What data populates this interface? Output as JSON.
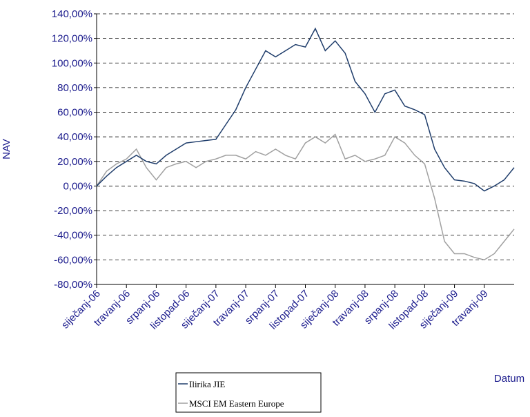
{
  "chart_data": {
    "type": "line",
    "y_label": "NAV",
    "x_label": "Datum",
    "categories": [
      "siječanj-06",
      null,
      null,
      "travanj-06",
      null,
      null,
      "srpanj-06",
      null,
      null,
      "listopad-06",
      null,
      null,
      "siječanj-07",
      null,
      null,
      "travanj-07",
      null,
      null,
      "srpanj-07",
      null,
      null,
      "listopad-07",
      null,
      null,
      "siječanj-08",
      null,
      null,
      "travanj-08",
      null,
      null,
      "srpanj-08",
      null,
      null,
      "listopad-08",
      null,
      null,
      "siječanj-09",
      null,
      null,
      "travanj-09",
      null,
      null,
      null
    ],
    "series": [
      {
        "name": "Ilirika JIE",
        "color": "#1f3d6b",
        "values": [
          0,
          8,
          15,
          20,
          25,
          20,
          18,
          25,
          30,
          35,
          36,
          37,
          38,
          50,
          62,
          80,
          95,
          110,
          105,
          110,
          115,
          113,
          128,
          110,
          118,
          108,
          85,
          75,
          60,
          75,
          78,
          65,
          62,
          58,
          30,
          15,
          5,
          4,
          2,
          -4,
          0,
          5,
          15
        ]
      },
      {
        "name": "MSCI EM Eastern Europe",
        "color": "#a0a0a0",
        "values": [
          0,
          12,
          18,
          22,
          30,
          15,
          5,
          15,
          18,
          20,
          15,
          20,
          22,
          25,
          25,
          22,
          28,
          25,
          30,
          25,
          22,
          35,
          40,
          35,
          42,
          22,
          25,
          20,
          22,
          25,
          40,
          35,
          25,
          18,
          -10,
          -45,
          -55,
          -55,
          -58,
          -60,
          -55,
          -45,
          -35
        ]
      }
    ],
    "ylim": [
      -80,
      140
    ],
    "yticks": [
      {
        "value": -80,
        "label": "-80,00%"
      },
      {
        "value": -60,
        "label": "-60,00%"
      },
      {
        "value": -40,
        "label": "-40,00%"
      },
      {
        "value": -20,
        "label": "-20,00%"
      },
      {
        "value": 0,
        "label": "0,00%"
      },
      {
        "value": 20,
        "label": "20,00%"
      },
      {
        "value": 40,
        "label": "40,00%"
      },
      {
        "value": 60,
        "label": "60,00%"
      },
      {
        "value": 80,
        "label": "80,00%"
      },
      {
        "value": 100,
        "label": "100,00%"
      },
      {
        "value": 120,
        "label": "120,00%"
      },
      {
        "value": 140,
        "label": "140,00%"
      }
    ],
    "grid": true
  }
}
